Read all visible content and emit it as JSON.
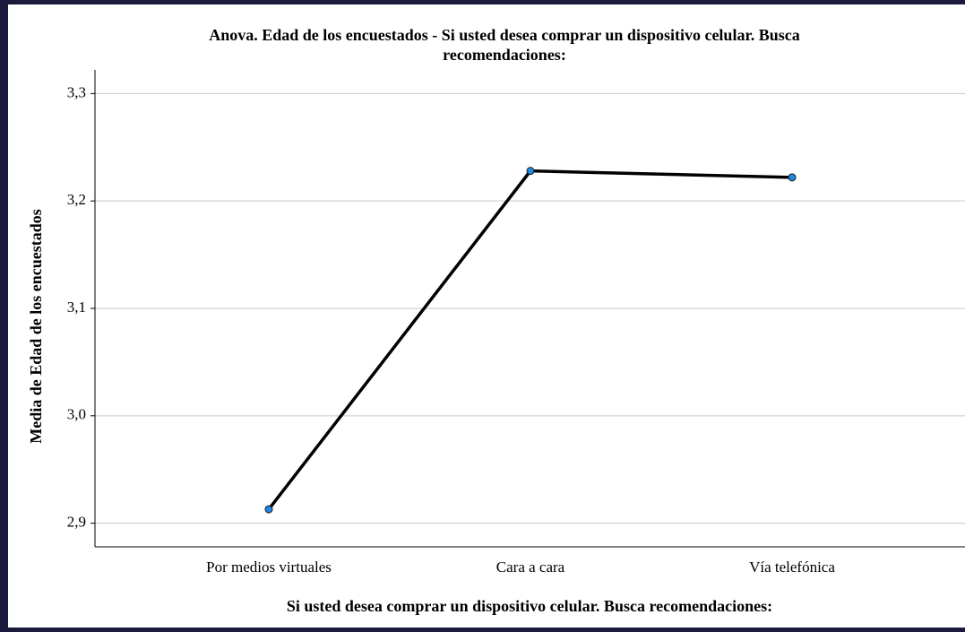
{
  "chart_data": {
    "type": "line",
    "title": [
      "Anova. Edad de los encuestados - Si usted desea comprar un dispositivo celular. Busca",
      "recomendaciones:"
    ],
    "x_label": "Si usted desea comprar un dispositivo celular. Busca recomendaciones:",
    "y_label": "Media de Edad de los encuestados",
    "categories": [
      "Por medios virtuales",
      "Cara a cara",
      "Vía telefónica"
    ],
    "series": [
      {
        "color": "#000000",
        "marker_color": "#1e88e5",
        "values": [
          2.913,
          3.228,
          3.222
        ]
      }
    ],
    "ylim": [
      2.878,
      3.322
    ],
    "yticks": [
      {
        "value": 2.9,
        "label": "2,9"
      },
      {
        "value": 3.0,
        "label": "3,0"
      },
      {
        "value": 3.1,
        "label": "3,1"
      },
      {
        "value": 3.2,
        "label": "3,2"
      },
      {
        "value": 3.3,
        "label": "3,3"
      }
    ],
    "grid": true
  }
}
